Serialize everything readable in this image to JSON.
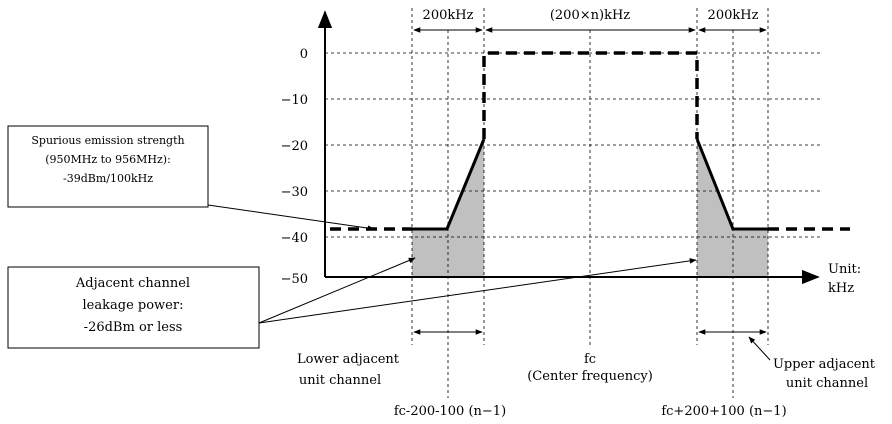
{
  "y_axis_ticks": [
    "0",
    "−10",
    "−20",
    "−30",
    "−40",
    "−50"
  ],
  "top_spans": {
    "left": "200kHz",
    "center": "(200×n)kHz",
    "right": "200kHz"
  },
  "unit_label": {
    "line1": "Unit:",
    "line2": "kHz"
  },
  "spurious_box": {
    "line1": "Spurious emission strength",
    "line2": "(950MHz to 956MHz):",
    "line3": "-39dBm/100kHz"
  },
  "leakage_box": {
    "line1": "Adjacent channel",
    "line2": "leakage power:",
    "line3": "-26dBm or less"
  },
  "lower_channel": {
    "line1": "Lower adjacent",
    "line2": "unit channel"
  },
  "center_label": {
    "line1": "fc",
    "line2": "(Center frequency)"
  },
  "upper_channel": {
    "line1": "Upper adjacent",
    "line2": "unit channel"
  },
  "lower_formula": "fc-200-100 (n−1)",
  "upper_formula": "fc+200+100 (n−1)",
  "colors": {
    "shaded": "#c0c0c0",
    "line": "#000000"
  }
}
